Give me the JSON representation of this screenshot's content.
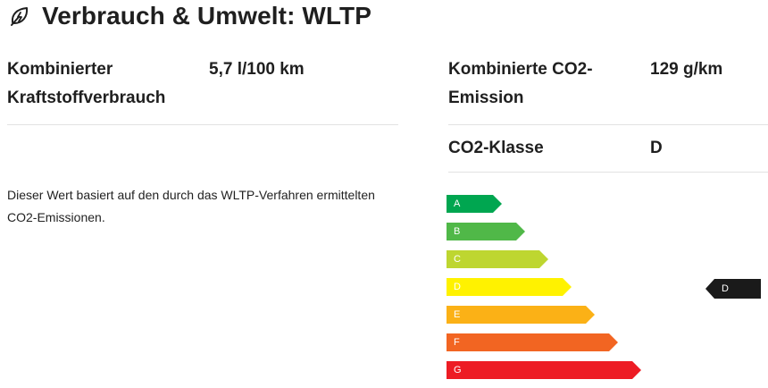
{
  "header": {
    "icon": "leaf-icon",
    "title": "Verbrauch & Umwelt: WLTP"
  },
  "consumption": {
    "label_line1": "Kombinierter",
    "label_line2": "Kraftstoffverbrauch",
    "value": "5,7 l/100 km"
  },
  "emission": {
    "label_line1": "Kombinierte CO2-",
    "label_line2": "Emission",
    "value": "129 g/km"
  },
  "co2_class": {
    "label": "CO2-Klasse",
    "value": "D"
  },
  "note": {
    "line1": "Dieser Wert basiert auf den durch das WLTP-Verfahren ermittelten",
    "line2": "CO2-Emissionen."
  },
  "efficiency_scale": {
    "classes": [
      {
        "letter": "A",
        "color": "#00a650"
      },
      {
        "letter": "B",
        "color": "#50b848"
      },
      {
        "letter": "C",
        "color": "#bed630"
      },
      {
        "letter": "D",
        "color": "#fff200"
      },
      {
        "letter": "E",
        "color": "#fbb116"
      },
      {
        "letter": "F",
        "color": "#f26522"
      },
      {
        "letter": "G",
        "color": "#ed1c24"
      }
    ],
    "selected": "D",
    "indicator_color": "#1a1a1a"
  }
}
